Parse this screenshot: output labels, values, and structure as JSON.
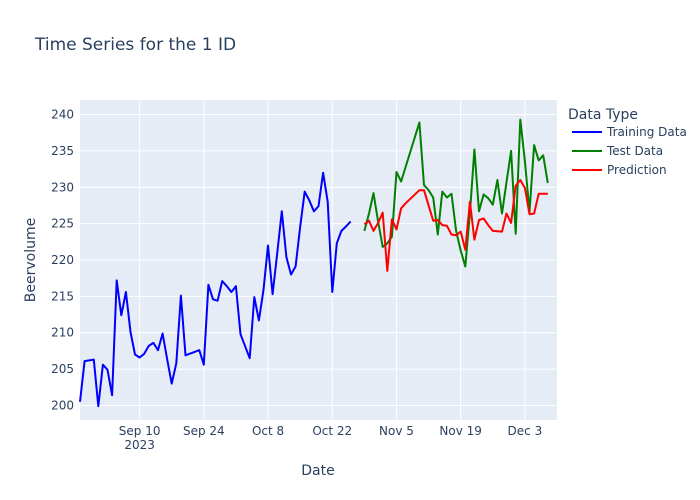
{
  "chart_data": {
    "type": "line",
    "title": "Time Series for the 1 ID",
    "xlabel": "Date",
    "ylabel": "Beervolume",
    "x_range": [
      "2023-08-28",
      "2023-12-10"
    ],
    "ylim": [
      198,
      242
    ],
    "grid": true,
    "legend_title": "Data Type",
    "legend_position": "right",
    "plot_bg": "#e5ecf6",
    "x_ticks": [
      {
        "date": "2023-09-10",
        "label": "Sep 10",
        "sub": "2023"
      },
      {
        "date": "2023-09-24",
        "label": "Sep 24"
      },
      {
        "date": "2023-10-08",
        "label": "Oct 8"
      },
      {
        "date": "2023-10-22",
        "label": "Oct 22"
      },
      {
        "date": "2023-11-05",
        "label": "Nov 5"
      },
      {
        "date": "2023-11-19",
        "label": "Nov 19"
      },
      {
        "date": "2023-12-03",
        "label": "Dec 3"
      }
    ],
    "y_ticks": [
      200,
      205,
      210,
      215,
      220,
      225,
      230,
      235,
      240
    ],
    "series": [
      {
        "name": "Training Data",
        "color": "#0000ff",
        "points": [
          [
            "2023-08-28",
            200.5
          ],
          [
            "2023-08-29",
            206.1
          ],
          [
            "2023-08-31",
            206.3
          ],
          [
            "2023-09-01",
            199.9
          ],
          [
            "2023-09-02",
            205.6
          ],
          [
            "2023-09-03",
            204.9
          ],
          [
            "2023-09-04",
            201.4
          ],
          [
            "2023-09-05",
            217.2
          ],
          [
            "2023-09-06",
            212.4
          ],
          [
            "2023-09-07",
            215.6
          ],
          [
            "2023-09-08",
            210.1
          ],
          [
            "2023-09-09",
            207.0
          ],
          [
            "2023-09-10",
            206.6
          ],
          [
            "2023-09-11",
            207.1
          ],
          [
            "2023-09-12",
            208.2
          ],
          [
            "2023-09-13",
            208.6
          ],
          [
            "2023-09-14",
            207.6
          ],
          [
            "2023-09-15",
            209.9
          ],
          [
            "2023-09-16",
            206.4
          ],
          [
            "2023-09-17",
            203.0
          ],
          [
            "2023-09-18",
            205.8
          ],
          [
            "2023-09-19",
            215.1
          ],
          [
            "2023-09-20",
            206.9
          ],
          [
            "2023-09-23",
            207.6
          ],
          [
            "2023-09-24",
            205.6
          ],
          [
            "2023-09-25",
            216.6
          ],
          [
            "2023-09-26",
            214.6
          ],
          [
            "2023-09-27",
            214.4
          ],
          [
            "2023-09-28",
            217.1
          ],
          [
            "2023-09-29",
            216.4
          ],
          [
            "2023-09-30",
            215.6
          ],
          [
            "2023-10-01",
            216.4
          ],
          [
            "2023-10-02",
            209.8
          ],
          [
            "2023-10-04",
            206.5
          ],
          [
            "2023-10-05",
            214.9
          ],
          [
            "2023-10-06",
            211.7
          ],
          [
            "2023-10-07",
            215.9
          ],
          [
            "2023-10-08",
            222.0
          ],
          [
            "2023-10-09",
            215.3
          ],
          [
            "2023-10-10",
            220.9
          ],
          [
            "2023-10-11",
            226.7
          ],
          [
            "2023-10-12",
            220.4
          ],
          [
            "2023-10-13",
            218.0
          ],
          [
            "2023-10-14",
            219.1
          ],
          [
            "2023-10-15",
            224.6
          ],
          [
            "2023-10-16",
            229.4
          ],
          [
            "2023-10-17",
            228.2
          ],
          [
            "2023-10-18",
            226.7
          ],
          [
            "2023-10-19",
            227.4
          ],
          [
            "2023-10-20",
            232.0
          ],
          [
            "2023-10-21",
            228.0
          ],
          [
            "2023-10-22",
            215.6
          ],
          [
            "2023-10-23",
            222.3
          ],
          [
            "2023-10-24",
            224.0
          ],
          [
            "2023-10-25",
            224.6
          ],
          [
            "2023-10-26",
            225.3
          ]
        ]
      },
      {
        "name": "Test Data",
        "color": "#008000",
        "points": [
          [
            "2023-10-29",
            224.0
          ],
          [
            "2023-10-30",
            226.4
          ],
          [
            "2023-10-31",
            229.2
          ],
          [
            "2023-11-01",
            225.3
          ],
          [
            "2023-11-02",
            221.8
          ],
          [
            "2023-11-03",
            222.3
          ],
          [
            "2023-11-04",
            223.2
          ],
          [
            "2023-11-05",
            232.1
          ],
          [
            "2023-11-06",
            230.8
          ],
          [
            "2023-11-10",
            238.9
          ],
          [
            "2023-11-11",
            230.3
          ],
          [
            "2023-11-12",
            229.6
          ],
          [
            "2023-11-13",
            228.6
          ],
          [
            "2023-11-14",
            223.5
          ],
          [
            "2023-11-15",
            229.4
          ],
          [
            "2023-11-16",
            228.6
          ],
          [
            "2023-11-17",
            229.1
          ],
          [
            "2023-11-18",
            224.0
          ],
          [
            "2023-11-19",
            221.3
          ],
          [
            "2023-11-20",
            219.1
          ],
          [
            "2023-11-21",
            226.4
          ],
          [
            "2023-11-22",
            235.2
          ],
          [
            "2023-11-23",
            226.7
          ],
          [
            "2023-11-24",
            229.0
          ],
          [
            "2023-11-25",
            228.5
          ],
          [
            "2023-11-26",
            227.6
          ],
          [
            "2023-11-27",
            231.0
          ],
          [
            "2023-11-28",
            226.4
          ],
          [
            "2023-11-29",
            230.7
          ],
          [
            "2023-11-30",
            235.0
          ],
          [
            "2023-12-01",
            223.6
          ],
          [
            "2023-12-02",
            239.3
          ],
          [
            "2023-12-03",
            233.6
          ],
          [
            "2023-12-04",
            226.6
          ],
          [
            "2023-12-05",
            235.8
          ],
          [
            "2023-12-06",
            233.7
          ],
          [
            "2023-12-07",
            234.4
          ],
          [
            "2023-12-08",
            230.6
          ]
        ]
      },
      {
        "name": "Prediction",
        "color": "#ff0000",
        "points": [
          [
            "2023-10-29",
            224.9
          ],
          [
            "2023-10-30",
            225.4
          ],
          [
            "2023-10-31",
            224.0
          ],
          [
            "2023-11-01",
            225.1
          ],
          [
            "2023-11-02",
            226.5
          ],
          [
            "2023-11-03",
            218.5
          ],
          [
            "2023-11-04",
            225.6
          ],
          [
            "2023-11-05",
            224.2
          ],
          [
            "2023-11-06",
            227.1
          ],
          [
            "2023-11-07",
            227.8
          ],
          [
            "2023-11-10",
            229.6
          ],
          [
            "2023-11-11",
            229.6
          ],
          [
            "2023-11-13",
            225.4
          ],
          [
            "2023-11-14",
            225.5
          ],
          [
            "2023-11-15",
            224.8
          ],
          [
            "2023-11-16",
            224.7
          ],
          [
            "2023-11-17",
            223.5
          ],
          [
            "2023-11-18",
            223.4
          ],
          [
            "2023-11-19",
            223.9
          ],
          [
            "2023-11-20",
            221.4
          ],
          [
            "2023-11-21",
            228.0
          ],
          [
            "2023-11-22",
            222.8
          ],
          [
            "2023-11-23",
            225.5
          ],
          [
            "2023-11-24",
            225.7
          ],
          [
            "2023-11-25",
            224.8
          ],
          [
            "2023-11-26",
            224.0
          ],
          [
            "2023-11-28",
            223.9
          ],
          [
            "2023-11-29",
            226.4
          ],
          [
            "2023-11-30",
            225.1
          ],
          [
            "2023-12-01",
            230.2
          ],
          [
            "2023-12-02",
            231.0
          ],
          [
            "2023-12-03",
            229.9
          ],
          [
            "2023-12-04",
            226.3
          ],
          [
            "2023-12-05",
            226.4
          ],
          [
            "2023-12-06",
            229.1
          ],
          [
            "2023-12-08",
            229.1
          ]
        ]
      }
    ]
  }
}
